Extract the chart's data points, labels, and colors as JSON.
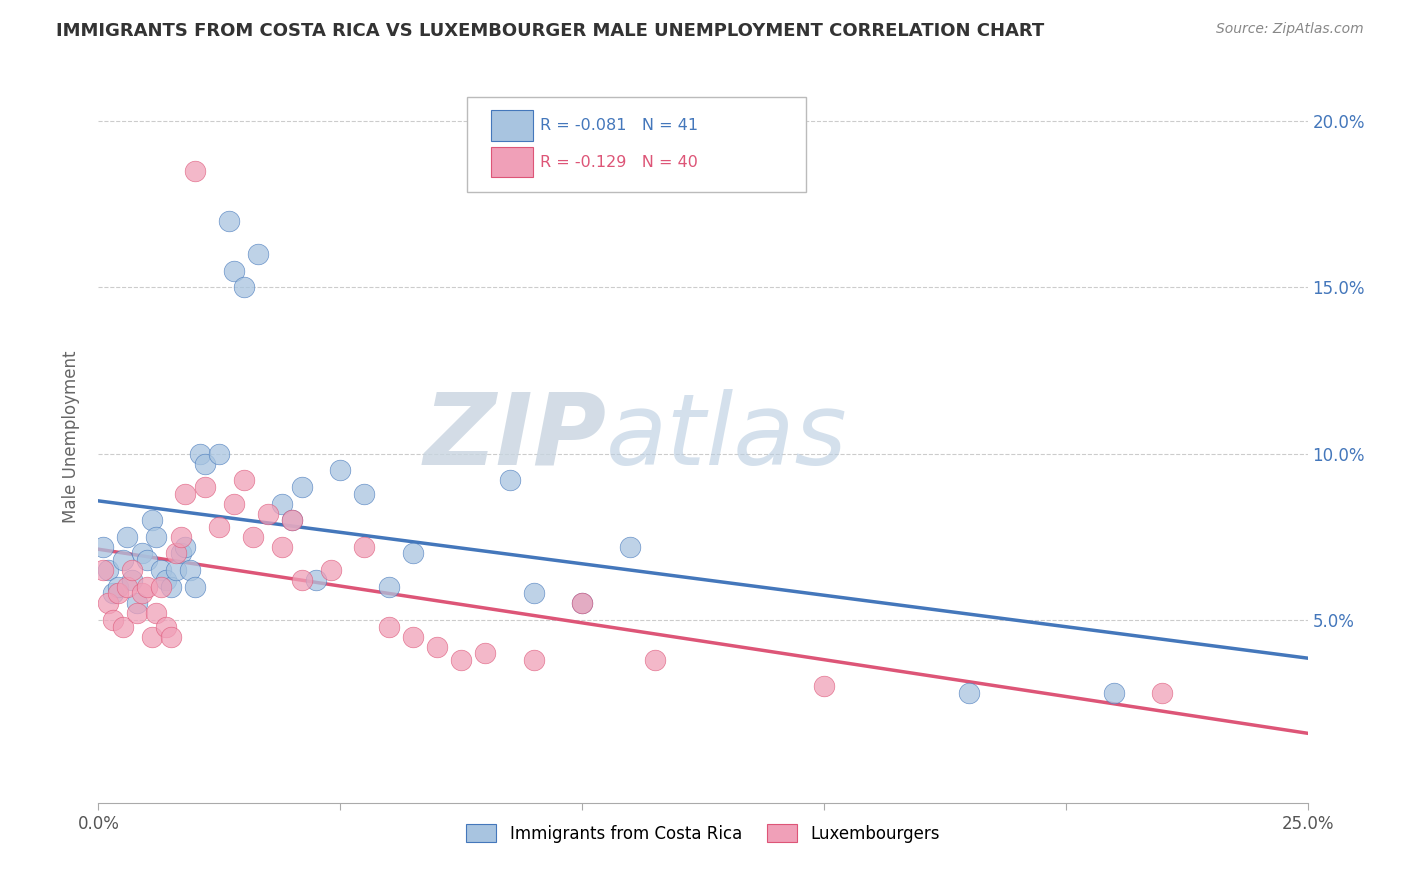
{
  "title": "IMMIGRANTS FROM COSTA RICA VS LUXEMBOURGER MALE UNEMPLOYMENT CORRELATION CHART",
  "source": "Source: ZipAtlas.com",
  "ylabel": "Male Unemployment",
  "xlim": [
    0.0,
    0.25
  ],
  "ylim": [
    -0.005,
    0.215
  ],
  "xticks": [
    0.0,
    0.05,
    0.1,
    0.15,
    0.2,
    0.25
  ],
  "xticklabels": [
    "0.0%",
    "",
    "",
    "",
    "",
    "25.0%"
  ],
  "yticks": [
    0.05,
    0.1,
    0.15,
    0.2
  ],
  "yticklabels": [
    "5.0%",
    "10.0%",
    "15.0%",
    "20.0%"
  ],
  "blue_color": "#a8c4e0",
  "pink_color": "#f0a0b8",
  "blue_line_color": "#4477bb",
  "pink_line_color": "#dd5577",
  "legend_blue_label": "Immigrants from Costa Rica",
  "legend_pink_label": "Luxembourgers",
  "R_blue": -0.081,
  "N_blue": 41,
  "R_pink": -0.129,
  "N_pink": 40,
  "background_color": "#ffffff",
  "blue_scatter_x": [
    0.001,
    0.002,
    0.003,
    0.004,
    0.005,
    0.006,
    0.007,
    0.008,
    0.009,
    0.01,
    0.011,
    0.012,
    0.013,
    0.014,
    0.015,
    0.016,
    0.017,
    0.018,
    0.019,
    0.02,
    0.021,
    0.022,
    0.025,
    0.027,
    0.028,
    0.03,
    0.033,
    0.038,
    0.04,
    0.042,
    0.045,
    0.05,
    0.055,
    0.06,
    0.065,
    0.085,
    0.09,
    0.1,
    0.11,
    0.18,
    0.21
  ],
  "blue_scatter_y": [
    0.072,
    0.065,
    0.058,
    0.06,
    0.068,
    0.075,
    0.062,
    0.055,
    0.07,
    0.068,
    0.08,
    0.075,
    0.065,
    0.062,
    0.06,
    0.065,
    0.07,
    0.072,
    0.065,
    0.06,
    0.1,
    0.097,
    0.1,
    0.17,
    0.155,
    0.15,
    0.16,
    0.085,
    0.08,
    0.09,
    0.062,
    0.095,
    0.088,
    0.06,
    0.07,
    0.092,
    0.058,
    0.055,
    0.072,
    0.028,
    0.028
  ],
  "pink_scatter_x": [
    0.001,
    0.002,
    0.003,
    0.004,
    0.005,
    0.006,
    0.007,
    0.008,
    0.009,
    0.01,
    0.011,
    0.012,
    0.013,
    0.014,
    0.015,
    0.016,
    0.017,
    0.018,
    0.02,
    0.022,
    0.025,
    0.028,
    0.03,
    0.032,
    0.035,
    0.038,
    0.04,
    0.042,
    0.048,
    0.055,
    0.06,
    0.065,
    0.07,
    0.075,
    0.08,
    0.09,
    0.1,
    0.115,
    0.15,
    0.22
  ],
  "pink_scatter_y": [
    0.065,
    0.055,
    0.05,
    0.058,
    0.048,
    0.06,
    0.065,
    0.052,
    0.058,
    0.06,
    0.045,
    0.052,
    0.06,
    0.048,
    0.045,
    0.07,
    0.075,
    0.088,
    0.185,
    0.09,
    0.078,
    0.085,
    0.092,
    0.075,
    0.082,
    0.072,
    0.08,
    0.062,
    0.065,
    0.072,
    0.048,
    0.045,
    0.042,
    0.038,
    0.04,
    0.038,
    0.055,
    0.038,
    0.03,
    0.028
  ]
}
